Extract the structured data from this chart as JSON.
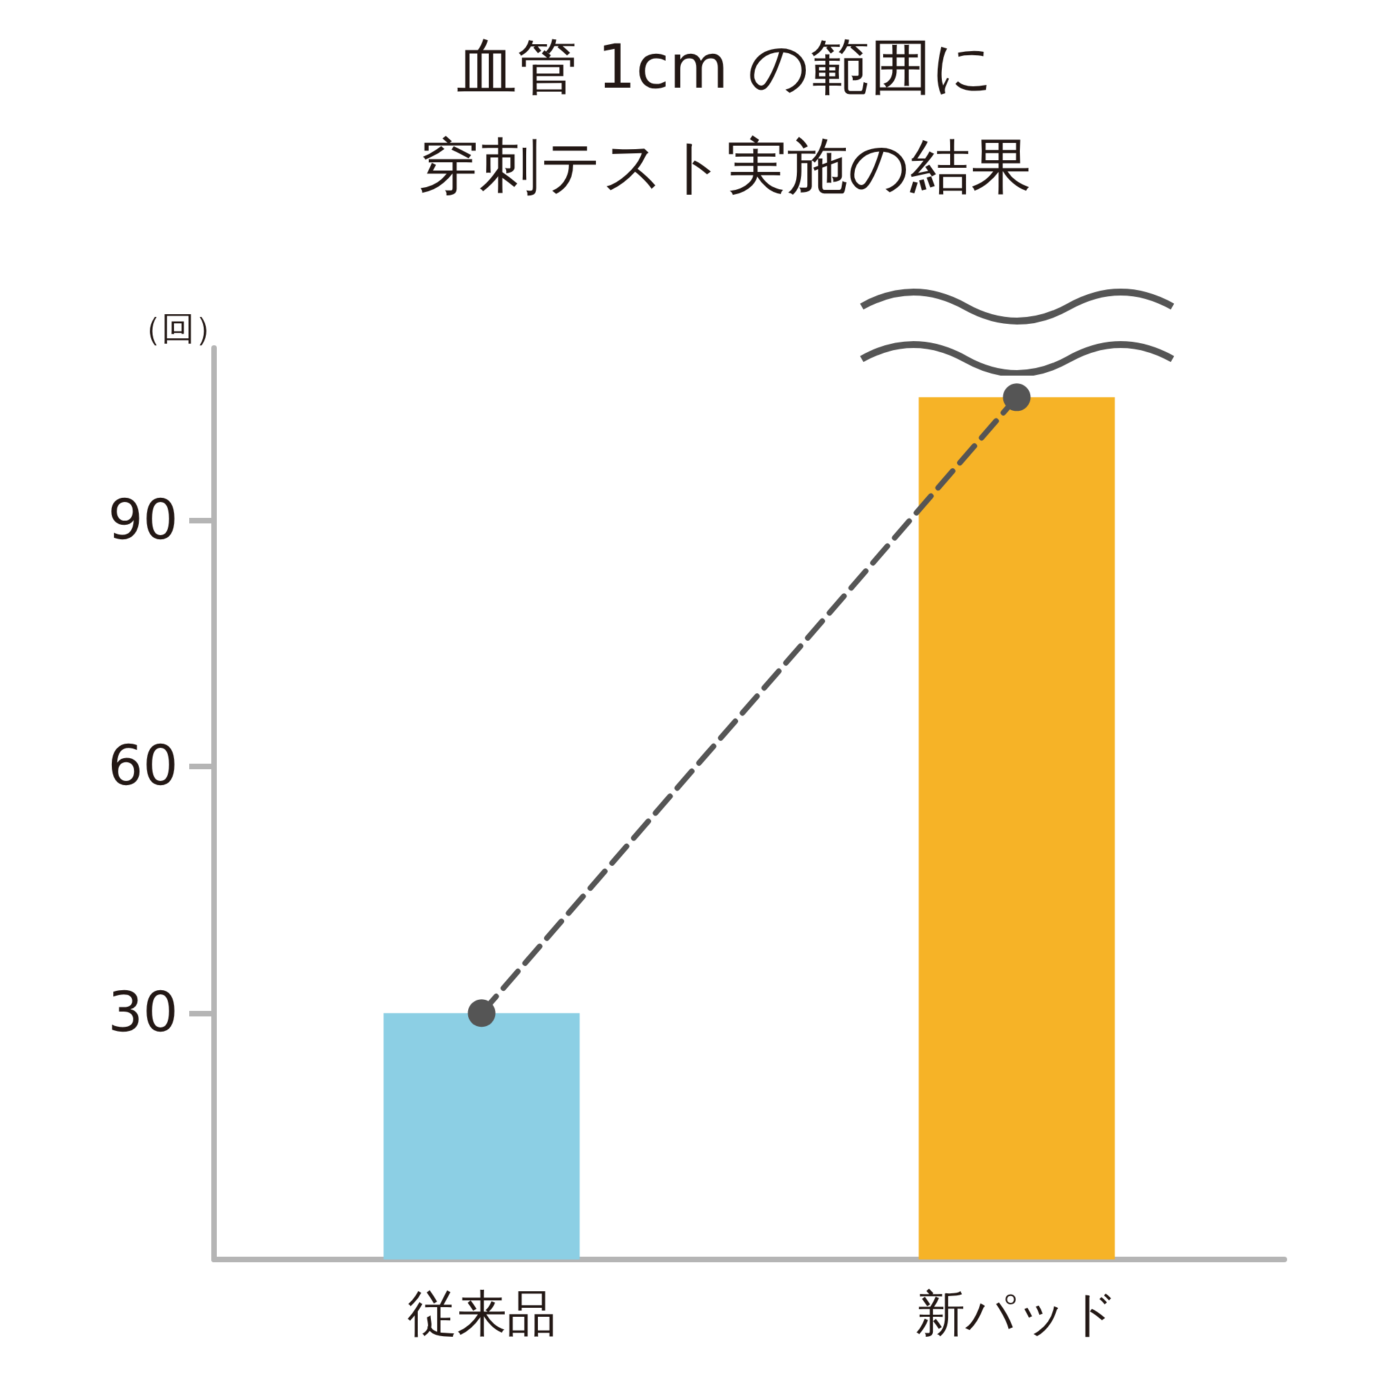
{
  "chart_data": {
    "type": "bar",
    "title": "血管 1cm の範囲に",
    "subtitle": "穿刺テスト実施の結果",
    "ylabel": "（回）",
    "categories": [
      "従来品",
      "新パッド"
    ],
    "series": [
      {
        "values": [
          30,
          105
        ],
        "colors": [
          "#8ccfe4",
          "#f6b327"
        ]
      },
      {
        "type": "line",
        "color": "#555555",
        "values": [
          30,
          105
        ],
        "marker": "circle",
        "line_style": "dashed"
      }
    ],
    "ylim": [
      0,
      111
    ],
    "yticks": [
      30,
      60,
      90
    ],
    "grid": false
  }
}
